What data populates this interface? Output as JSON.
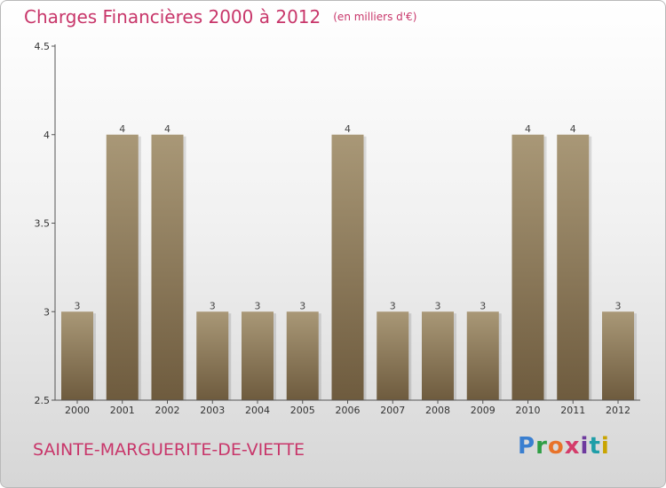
{
  "title": "Charges Financières 2000 à 2012",
  "unit_note": "(en milliers d'€)",
  "place_name": "SAINTE-MARGUERITE-DE-VIETTE",
  "logo": {
    "text": "Proxiti",
    "colors": [
      "#3a7fd0",
      "#2f9e44",
      "#e8732a",
      "#d43c6a",
      "#6e3a9e",
      "#1f9ea8",
      "#c9a400"
    ]
  },
  "colors": {
    "accent": "#c8366a",
    "bar_light": "#a99877",
    "bar_dark": "#6e5b3e",
    "axis": "#555555"
  },
  "chart_data": {
    "type": "bar",
    "categories": [
      "2000",
      "2001",
      "2002",
      "2003",
      "2004",
      "2005",
      "2006",
      "2007",
      "2008",
      "2009",
      "2010",
      "2011",
      "2012"
    ],
    "values": [
      3,
      4,
      4,
      3,
      3,
      3,
      4,
      3,
      3,
      3,
      4,
      4,
      3
    ],
    "data_labels": [
      "3",
      "4",
      "4",
      "3",
      "3",
      "3",
      "4",
      "3",
      "3",
      "3",
      "4",
      "4",
      "3"
    ],
    "y_ticks": [
      2.5,
      3,
      3.5,
      4,
      4.5
    ],
    "y_tick_labels": [
      "2.5",
      "3",
      "3.5",
      "4",
      "4.5"
    ],
    "ylim": [
      2.5,
      4.5
    ],
    "grid": false,
    "legend": "none"
  }
}
